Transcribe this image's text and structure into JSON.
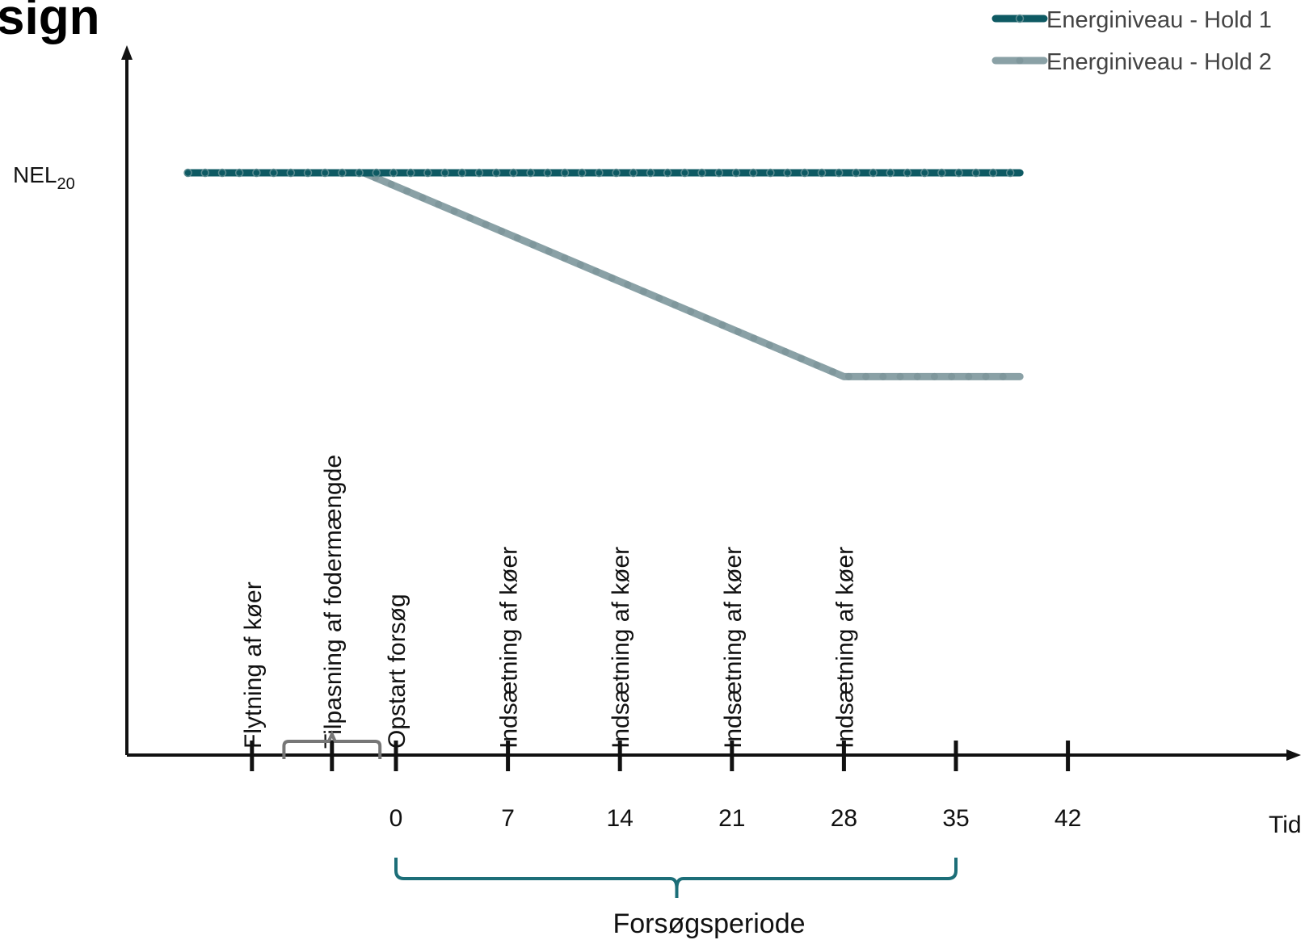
{
  "title": "sign",
  "colors": {
    "hold1": "#0e5a63",
    "hold2": "#8aa1a6",
    "axis": "#111111",
    "bracket_adapt": "#777777",
    "bracket_period": "#1c6e78",
    "title": "#1c6e78"
  },
  "chart_data": {
    "type": "line",
    "title": "",
    "xlabel": "Tid",
    "ylabel": "",
    "x_ticks": [
      0,
      7,
      14,
      21,
      28,
      35,
      42
    ],
    "xlim": [
      -14,
      50
    ],
    "ylim": [
      0,
      1.05
    ],
    "y_ticks": [
      {
        "label": "NEL",
        "subscript": "20",
        "value": 1
      }
    ],
    "grid": false,
    "legend_position": "top-right",
    "series": [
      {
        "name": "Energiniveau - Hold 1",
        "x": [
          -13,
          39
        ],
        "y": [
          1,
          1
        ]
      },
      {
        "name": "Energiniveau - Hold 2",
        "x": [
          -13,
          -2,
          28,
          39
        ],
        "y": [
          1,
          1,
          0.65,
          0.65
        ]
      }
    ],
    "events": [
      {
        "label": "Flytning af køer",
        "x": -9
      },
      {
        "label": "Tilpasning af fodermængde",
        "x": -4
      },
      {
        "label": "Opstart forsøg",
        "x": 0
      },
      {
        "label": "Indsætning af køer",
        "x": 7
      },
      {
        "label": "Indsætning af køer",
        "x": 14
      },
      {
        "label": "Indsætning af køer",
        "x": 21
      },
      {
        "label": "Indsætning af køer",
        "x": 28
      }
    ],
    "adaptation_bracket": {
      "x_start": -7,
      "x_end": -1
    },
    "period": {
      "label": "Forsøgsperiode",
      "x_start": 0,
      "x_end": 35
    }
  }
}
